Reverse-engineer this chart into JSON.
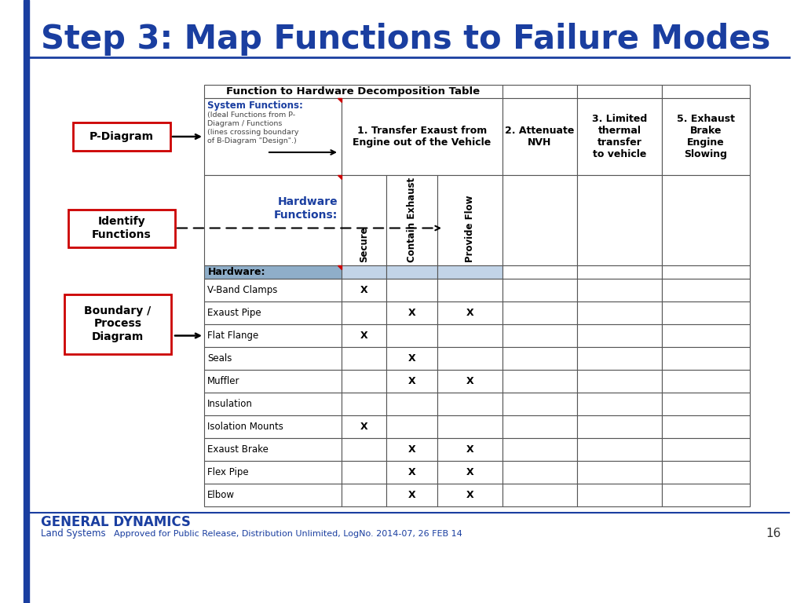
{
  "title": "Step 3: Map Functions to Failure Modes",
  "title_color": "#1a3ea0",
  "title_fontsize": 30,
  "bg_color": "#ffffff",
  "footer_text_bold": "GENERAL DYNAMICS",
  "footer_text_regular": "Land Systems",
  "footer_text_small": "Approved for Public Release, Distribution Unlimited, LogNo. 2014-07, 26 FEB 14",
  "page_number": "16",
  "table_title": "Function to Hardware Decomposition Table",
  "system_functions_header": "System Functions:",
  "system_functions_sub": "(Ideal Functions from P-\nDiagram / Functions\n(lines crossing boundary\nof B-Diagram \"Design\".)",
  "hardware_functions_header": "Hardware\nFunctions:",
  "col1_header": "1. Transfer Exaust from\nEngine out of the Vehicle",
  "col2_header": "2. Attenuate\nNVH",
  "col3_header": "3. Limited\nthermal\ntransfer\nto vehicle",
  "col4_header": "5. Exhaust\nBrake\nEngine\nSlowing",
  "hw_col1": "Secure",
  "hw_col2": "Contain Exhaust",
  "hw_col3": "Provide Flow",
  "hardware_row_label": "Hardware:",
  "hardware_items": [
    {
      "name": "V-Band Clamps",
      "secure": "X",
      "contain": "",
      "provide": ""
    },
    {
      "name": "Exaust Pipe",
      "secure": "",
      "contain": "X",
      "provide": "X"
    },
    {
      "name": "Flat Flange",
      "secure": "X",
      "contain": "",
      "provide": ""
    },
    {
      "name": "Seals",
      "secure": "",
      "contain": "X",
      "provide": ""
    },
    {
      "name": "Muffler",
      "secure": "",
      "contain": "X",
      "provide": "X"
    },
    {
      "name": "Insulation",
      "secure": "",
      "contain": "",
      "provide": ""
    },
    {
      "name": "Isolation Mounts",
      "secure": "X",
      "contain": "",
      "provide": ""
    },
    {
      "name": "Exaust Brake",
      "secure": "",
      "contain": "X",
      "provide": "X"
    },
    {
      "name": "Flex Pipe",
      "secure": "",
      "contain": "X",
      "provide": "X"
    },
    {
      "name": "Elbow",
      "secure": "",
      "contain": "X",
      "provide": "X"
    }
  ],
  "pdiagram_label": "P-Diagram",
  "identify_label": "Identify\nFunctions",
  "boundary_label": "Boundary /\nProcess\nDiagram",
  "header_blue": "#1a3ea0",
  "hardware_row_bg": "#8faec9",
  "hardware_col_bg": "#c2d4e8",
  "red_color": "#cc0000"
}
